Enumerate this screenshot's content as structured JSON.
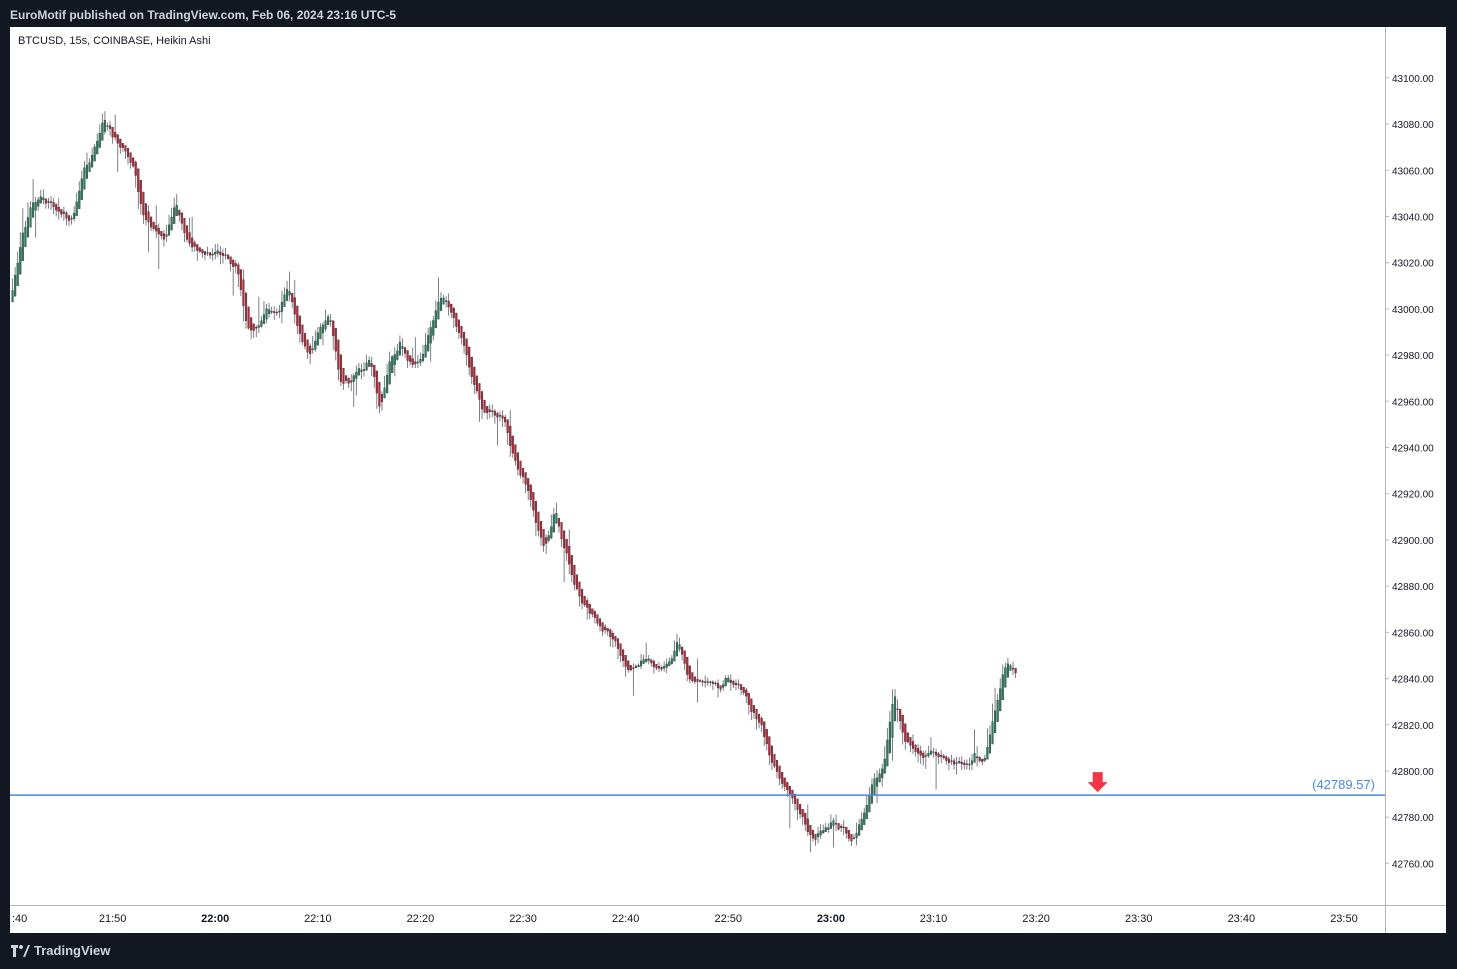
{
  "header": {
    "published_line": "EuroMotif published on TradingView.com, Feb 06, 2024 23:16 UTC-5"
  },
  "footer": {
    "brand": "TradingView",
    "logo_icon": "tradingview-logo-icon"
  },
  "colors": {
    "up": "#26a69a",
    "up_body": "#2e7d5b",
    "down": "#b22833",
    "level_line": "#4a86e8",
    "arrow": "#f23645",
    "wick": "#5d606b"
  },
  "chart_data": {
    "type": "candlestick",
    "symbol_label": "BTCUSD, 15s, COINBASE, Heikin Ashi",
    "candle_style": "Heikin Ashi",
    "interval": "15s",
    "exchange": "COINBASE",
    "symbol": "BTCUSD",
    "y_axis": {
      "position": "right",
      "range": [
        42742,
        43122
      ],
      "ticks": [
        "43100.00",
        "43080.00",
        "43060.00",
        "43040.00",
        "43020.00",
        "43000.00",
        "42980.00",
        "42960.00",
        "42940.00",
        "42920.00",
        "42900.00",
        "42880.00",
        "42860.00",
        "42840.00",
        "42820.00",
        "42800.00",
        "42780.00",
        "42760.00"
      ]
    },
    "x_axis": {
      "range": [
        "21:40",
        "23:54"
      ],
      "ticks": [
        ":40",
        "21:50",
        "22:00",
        "22:10",
        "22:20",
        "22:30",
        "22:40",
        "22:50",
        "23:00",
        "23:10",
        "23:20",
        "23:30",
        "23:40",
        "23:50"
      ],
      "bold_ticks": [
        "22:00",
        "23:00"
      ]
    },
    "horizontal_line": {
      "value": 42789.57,
      "label": "(42789.57)"
    },
    "annotation_arrow": {
      "time": "23:26",
      "direction": "down",
      "icon": "down-arrow-icon"
    },
    "price_path": [
      [
        "21:40",
        43005
      ],
      [
        "21:41",
        43030
      ],
      [
        "21:42",
        43045
      ],
      [
        "21:43",
        43048
      ],
      [
        "21:44",
        43045
      ],
      [
        "21:45",
        43040
      ],
      [
        "21:46",
        43038
      ],
      [
        "21:47",
        43058
      ],
      [
        "21:48",
        43068
      ],
      [
        "21:49",
        43083
      ],
      [
        "21:50",
        43073
      ],
      [
        "21:51",
        43070
      ],
      [
        "21:52",
        43060
      ],
      [
        "21:53",
        43038
      ],
      [
        "21:54",
        43035
      ],
      [
        "21:55",
        43030
      ],
      [
        "21:56",
        43046
      ],
      [
        "21:57",
        43030
      ],
      [
        "21:58",
        43025
      ],
      [
        "21:59",
        43024
      ],
      [
        "22:00",
        43024
      ],
      [
        "22:01",
        43023
      ],
      [
        "22:02",
        43018
      ],
      [
        "22:03",
        42992
      ],
      [
        "22:04",
        42990
      ],
      [
        "22:05",
        43000
      ],
      [
        "22:06",
        43000
      ],
      [
        "22:07",
        43010
      ],
      [
        "22:08",
        42990
      ],
      [
        "22:09",
        42980
      ],
      [
        "22:10",
        42990
      ],
      [
        "22:11",
        42998
      ],
      [
        "22:12",
        42970
      ],
      [
        "22:13",
        42968
      ],
      [
        "22:14",
        42974
      ],
      [
        "22:15",
        42978
      ],
      [
        "22:16",
        42955
      ],
      [
        "22:17",
        42978
      ],
      [
        "22:18",
        42985
      ],
      [
        "22:19",
        42975
      ],
      [
        "22:20",
        42978
      ],
      [
        "22:21",
        42995
      ],
      [
        "22:22",
        43005
      ],
      [
        "22:23",
        42998
      ],
      [
        "22:24",
        42985
      ],
      [
        "22:25",
        42970
      ],
      [
        "22:26",
        42955
      ],
      [
        "22:27",
        42955
      ],
      [
        "22:28",
        42953
      ],
      [
        "22:29",
        42935
      ],
      [
        "22:30",
        42925
      ],
      [
        "22:31",
        42910
      ],
      [
        "22:32",
        42895
      ],
      [
        "22:33",
        42915
      ],
      [
        "22:34",
        42895
      ],
      [
        "22:35",
        42880
      ],
      [
        "22:36",
        42870
      ],
      [
        "22:37",
        42865
      ],
      [
        "22:38",
        42860
      ],
      [
        "22:39",
        42855
      ],
      [
        "22:40",
        42845
      ],
      [
        "22:41",
        42845
      ],
      [
        "22:42",
        42850
      ],
      [
        "22:43",
        42845
      ],
      [
        "22:44",
        42845
      ],
      [
        "22:45",
        42855
      ],
      [
        "22:46",
        42840
      ],
      [
        "22:47",
        42838
      ],
      [
        "22:48",
        42838
      ],
      [
        "22:49",
        42835
      ],
      [
        "22:50",
        42840
      ],
      [
        "22:51",
        42835
      ],
      [
        "22:52",
        42828
      ],
      [
        "22:53",
        42820
      ],
      [
        "22:54",
        42805
      ],
      [
        "22:55",
        42795
      ],
      [
        "22:56",
        42790
      ],
      [
        "22:57",
        42780
      ],
      [
        "22:58",
        42770
      ],
      [
        "22:59",
        42775
      ],
      [
        "23:00",
        42778
      ],
      [
        "23:01",
        42775
      ],
      [
        "23:02",
        42770
      ],
      [
        "23:03",
        42780
      ],
      [
        "23:04",
        42795
      ],
      [
        "23:05",
        42800
      ],
      [
        "23:06",
        42835
      ],
      [
        "23:07",
        42815
      ],
      [
        "23:08",
        42808
      ],
      [
        "23:09",
        42806
      ],
      [
        "23:10",
        42808
      ],
      [
        "23:11",
        42804
      ],
      [
        "23:12",
        42802
      ],
      [
        "23:13",
        42803
      ],
      [
        "23:14",
        42806
      ],
      [
        "23:15",
        42805
      ],
      [
        "23:16",
        42830
      ],
      [
        "23:17",
        42848
      ],
      [
        "23:18",
        42843
      ]
    ]
  }
}
